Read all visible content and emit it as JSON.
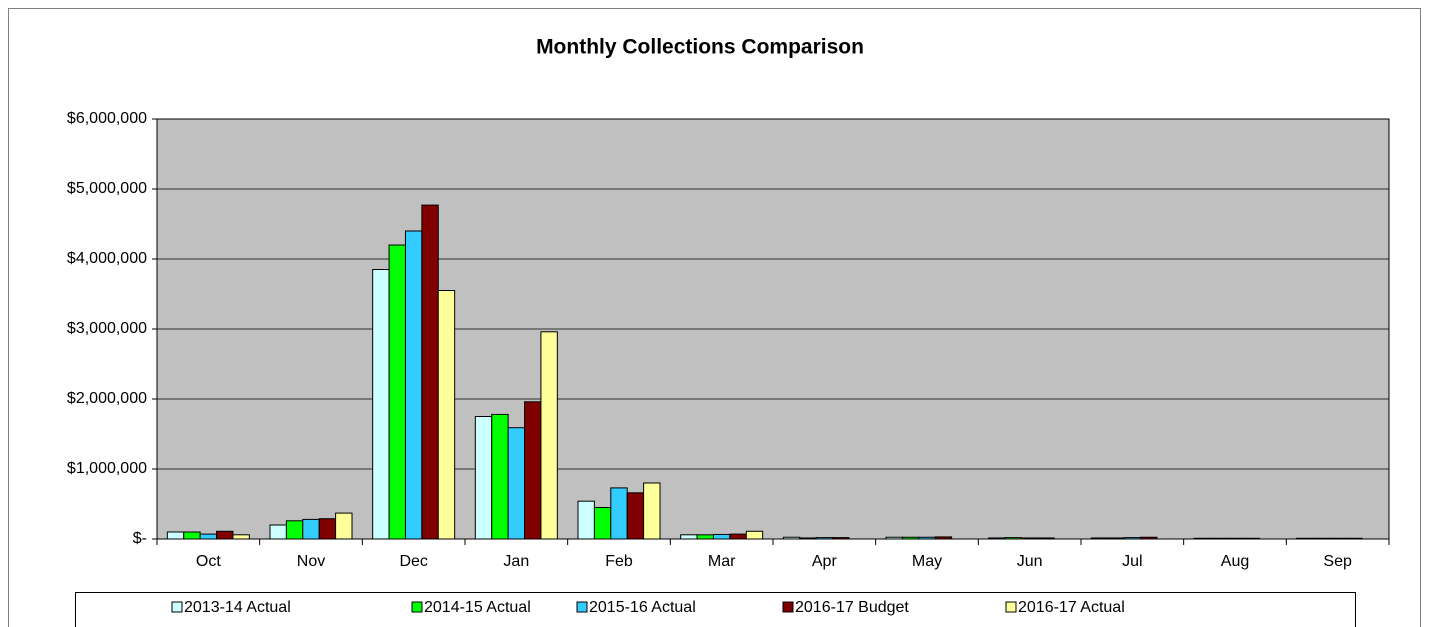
{
  "chart_data": {
    "type": "bar",
    "title": "Monthly Collections Comparison",
    "categories": [
      "Oct",
      "Nov",
      "Dec",
      "Jan",
      "Feb",
      "Mar",
      "Apr",
      "May",
      "Jun",
      "Jul",
      "Aug",
      "Sep"
    ],
    "series": [
      {
        "name": "2013-14 Actual",
        "color": "#ccffff",
        "values": [
          100000,
          200000,
          3850000,
          1750000,
          540000,
          60000,
          25000,
          25000,
          15000,
          15000,
          10000,
          10000
        ]
      },
      {
        "name": "2014-15 Actual",
        "color": "#00ff00",
        "values": [
          100000,
          260000,
          4200000,
          1780000,
          450000,
          60000,
          15000,
          25000,
          20000,
          15000,
          10000,
          10000
        ]
      },
      {
        "name": "2015-16 Actual",
        "color": "#33ccff",
        "values": [
          70000,
          280000,
          4400000,
          1590000,
          730000,
          65000,
          20000,
          25000,
          15000,
          20000,
          10000,
          10000
        ]
      },
      {
        "name": "2016-17 Budget",
        "color": "#800000",
        "values": [
          110000,
          290000,
          4770000,
          1960000,
          660000,
          70000,
          20000,
          30000,
          15000,
          25000,
          10000,
          10000
        ]
      },
      {
        "name": "2016-17 Actual",
        "color": "#ffff99",
        "values": [
          60000,
          370000,
          3550000,
          2960000,
          800000,
          110000,
          null,
          null,
          null,
          null,
          null,
          null
        ]
      }
    ],
    "ylim": [
      0,
      6000000
    ],
    "yticks": [
      {
        "value": 0,
        "label": "$-"
      },
      {
        "value": 1000000,
        "label": "$1,000,000"
      },
      {
        "value": 2000000,
        "label": "$2,000,000"
      },
      {
        "value": 3000000,
        "label": "$3,000,000"
      },
      {
        "value": 4000000,
        "label": "$4,000,000"
      },
      {
        "value": 5000000,
        "label": "$5,000,000"
      },
      {
        "value": 6000000,
        "label": "$6,000,000"
      }
    ],
    "grid": true,
    "plot_background": "#c0c0c0",
    "legend": "bottom"
  }
}
